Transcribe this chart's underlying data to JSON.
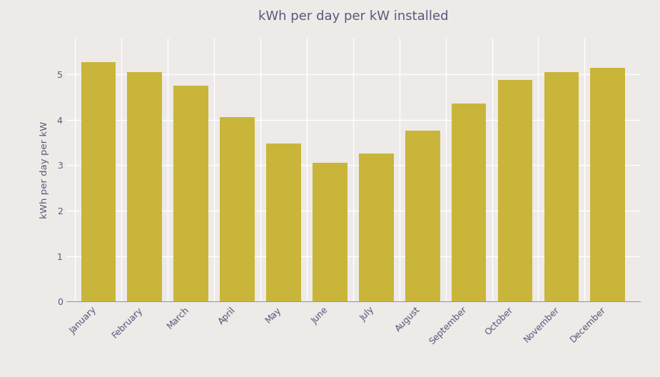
{
  "title": "kWh per day per kW installed",
  "ylabel": "kWh per day per kW",
  "categories": [
    "January",
    "February",
    "March",
    "April",
    "May",
    "June",
    "July",
    "August",
    "September",
    "October",
    "November",
    "December"
  ],
  "values": [
    5.26,
    5.05,
    4.75,
    4.05,
    3.48,
    3.05,
    3.25,
    3.76,
    4.35,
    4.87,
    5.05,
    5.14
  ],
  "bar_color": "#C9B53A",
  "background_color": "#EDEAE8",
  "grid_color": "#FFFFFF",
  "text_color": "#5A5A7A",
  "title_fontsize": 13,
  "label_fontsize": 9.5,
  "tick_fontsize": 9,
  "ylim": [
    0,
    5.8
  ],
  "yticks": [
    0,
    1,
    2,
    3,
    4,
    5
  ],
  "bar_width": 0.75
}
